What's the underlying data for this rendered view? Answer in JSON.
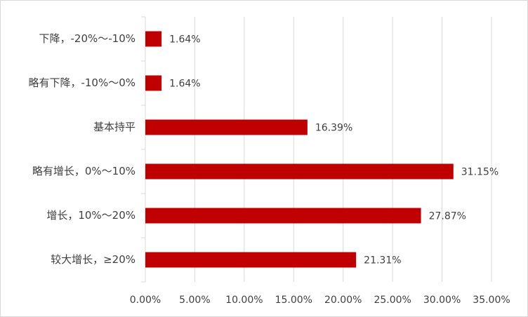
{
  "chart_data": {
    "type": "bar",
    "orientation": "horizontal",
    "categories": [
      "下降，-20%～-10%",
      "略有下降，-10%～0%",
      "基本持平",
      "略有增长，0%～10%",
      "增长，10%～20%",
      "较大增长，≥20%"
    ],
    "values": [
      1.64,
      1.64,
      16.39,
      31.15,
      27.87,
      21.31
    ],
    "value_labels": [
      "1.64%",
      "1.64%",
      "16.39%",
      "31.15%",
      "27.87%",
      "21.31%"
    ],
    "color": "#c00000",
    "xlim": [
      0,
      35
    ],
    "xticks": [
      {
        "value": 0,
        "label": "0.00%"
      },
      {
        "value": 5,
        "label": "5.00%"
      },
      {
        "value": 10,
        "label": "10.00%"
      },
      {
        "value": 15,
        "label": "15.00%"
      },
      {
        "value": 20,
        "label": "20.00%"
      },
      {
        "value": 25,
        "label": "25.00%"
      },
      {
        "value": 30,
        "label": "30.00%"
      },
      {
        "value": 35,
        "label": "35.00%"
      }
    ],
    "grid": true
  }
}
